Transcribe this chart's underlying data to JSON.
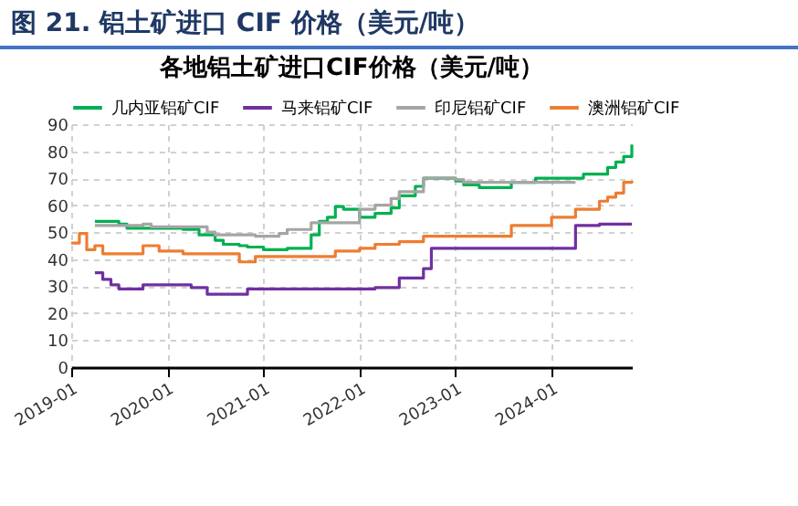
{
  "chart_data": {
    "type": "step",
    "title": "图 21. 铝土矿进口 CIF 价格（美元/吨）",
    "subtitle": "各地铝土矿进口CIF价格（美元/吨）",
    "xlim": [
      "2019-01",
      "2024-11"
    ],
    "xticks": [
      "2019-01",
      "2020-01",
      "2021-01",
      "2022-01",
      "2023-01",
      "2024-01"
    ],
    "ylim": [
      0,
      90
    ],
    "yticks": [
      0,
      10,
      20,
      30,
      40,
      50,
      60,
      70,
      80,
      90
    ],
    "grid": true,
    "legend": "top",
    "line_style": "solid",
    "series": [
      {
        "name": "几内亚铝矿CIF",
        "color": "#00b050",
        "x": [
          "2019-04",
          "2019-07",
          "2019-08",
          "2020-03",
          "2020-05",
          "2020-07",
          "2020-08",
          "2020-10",
          "2020-11",
          "2021-01",
          "2021-04",
          "2021-07",
          "2021-08",
          "2021-09",
          "2021-10",
          "2021-11",
          "2022-01",
          "2022-03",
          "2022-05",
          "2022-06",
          "2022-08",
          "2022-09",
          "2023-01",
          "2023-02",
          "2023-04",
          "2023-08",
          "2023-11",
          "2024-05",
          "2024-08",
          "2024-09",
          "2024-10",
          "2024-11"
        ],
        "values": [
          54,
          53,
          51.5,
          51,
          49,
          47,
          45.5,
          45,
          44.5,
          43.5,
          44,
          49,
          54,
          55.5,
          59.5,
          58.5,
          55.5,
          57,
          59,
          63.5,
          67,
          70,
          69,
          67.5,
          66.5,
          68.5,
          70,
          71.5,
          74,
          76,
          78,
          82.5
        ]
      },
      {
        "name": "马来铝矿CIF",
        "color": "#7030a0",
        "x": [
          "2019-04",
          "2019-05",
          "2019-06",
          "2019-07",
          "2019-10",
          "2020-04",
          "2020-06",
          "2020-11",
          "2022-03",
          "2022-06",
          "2022-09",
          "2022-10",
          "2024-04",
          "2024-07",
          "2024-11"
        ],
        "values": [
          35,
          32.5,
          30.5,
          29,
          30.5,
          29.5,
          27,
          29,
          29.5,
          33,
          36.5,
          44,
          52.5,
          53,
          53
        ]
      },
      {
        "name": "印尼铝矿CIF",
        "color": "#a5a5a5",
        "x": [
          "2019-04",
          "2019-10",
          "2019-11",
          "2020-06",
          "2020-07",
          "2020-12",
          "2021-03",
          "2021-04",
          "2021-07",
          "2022-01",
          "2022-03",
          "2022-05",
          "2022-06",
          "2022-09",
          "2023-01",
          "2023-02",
          "2024-04"
        ],
        "values": [
          52.5,
          53,
          52,
          50,
          49,
          48.5,
          49.5,
          51,
          53.5,
          58.5,
          60,
          62.5,
          65,
          70,
          69.5,
          68.5,
          68.5
        ]
      },
      {
        "name": "澳洲铝矿CIF",
        "color": "#ed7d31",
        "x": [
          "2019-01",
          "2019-02",
          "2019-03",
          "2019-04",
          "2019-05",
          "2019-10",
          "2019-12",
          "2020-03",
          "2020-10",
          "2020-12",
          "2021-10",
          "2022-01",
          "2022-03",
          "2022-06",
          "2022-09",
          "2023-08",
          "2024-01",
          "2024-04",
          "2024-07",
          "2024-08",
          "2024-09",
          "2024-10",
          "2024-11"
        ],
        "values": [
          46,
          49.5,
          43.5,
          45,
          42,
          45,
          43,
          42,
          39,
          41,
          43,
          44,
          45.5,
          46.5,
          48.5,
          52.5,
          55.5,
          58.5,
          61.5,
          63,
          64.5,
          68.5,
          69
        ]
      }
    ]
  }
}
